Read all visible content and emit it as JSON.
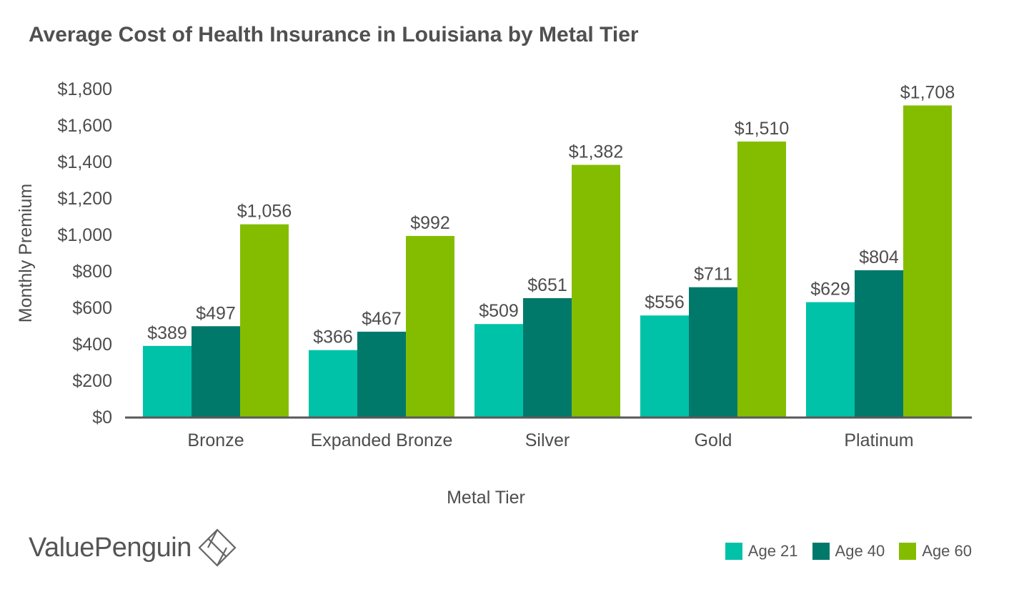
{
  "chart_data": {
    "type": "bar",
    "title": "Average Cost of Health Insurance in Louisiana by Metal Tier",
    "xlabel": "Metal Tier",
    "ylabel": "Monthly Premium",
    "categories": [
      "Bronze",
      "Expanded Bronze",
      "Silver",
      "Gold",
      "Platinum"
    ],
    "series": [
      {
        "name": "Age 21",
        "color": "#00c2a8",
        "values": [
          389,
          366,
          509,
          556,
          629
        ],
        "labels": [
          "$389",
          "$366",
          "$509",
          "$556",
          "$629"
        ]
      },
      {
        "name": "Age 40",
        "color": "#00796b",
        "values": [
          497,
          467,
          651,
          711,
          804
        ],
        "labels": [
          "$497",
          "$467",
          "$651",
          "$711",
          "$804"
        ]
      },
      {
        "name": "Age 60",
        "color": "#84bd00",
        "values": [
          1056,
          992,
          1382,
          1510,
          1708
        ],
        "labels": [
          "$1,056",
          "$992",
          "$1,382",
          "$1,510",
          "$1,708"
        ]
      }
    ],
    "ylim": [
      0,
      1800
    ],
    "yticks": [
      0,
      200,
      400,
      600,
      800,
      1000,
      1200,
      1400,
      1600,
      1800
    ],
    "ytick_labels": [
      "$0",
      "$200",
      "$400",
      "$600",
      "$800",
      "$1,000",
      "$1,200",
      "$1,400",
      "$1,600",
      "$1,800"
    ],
    "grid": false,
    "legend_position": "bottom-right"
  },
  "brand": {
    "name": "ValuePenguin",
    "logo_icon": "penguin-diamond-icon"
  },
  "colors": {
    "axis": "#595959",
    "text": "#4d4d4d"
  }
}
